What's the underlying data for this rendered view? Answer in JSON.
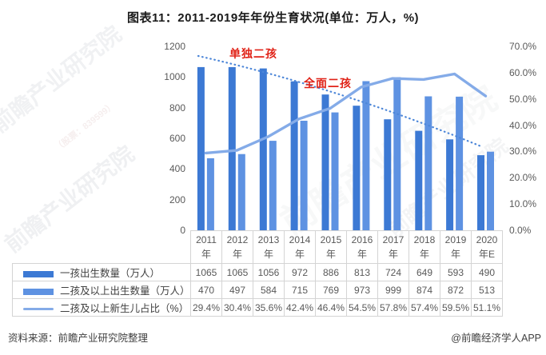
{
  "title": "图表11：2011-2019年年份生育状况(单位：万人，%)",
  "annotations": [
    {
      "text": "单独二孩"
    },
    {
      "text": "全面二孩"
    }
  ],
  "colors": {
    "bar1": "#3c79d4",
    "bar2": "#5e92e2",
    "line": "#84abe8",
    "trend_dotted": "#4c86d8",
    "annotation_red": "#e02318",
    "axis_text": "#595959",
    "table_border": "#d4d4d4"
  },
  "chart_data": {
    "type": "bar",
    "subtype": "grouped bars + line on secondary axis + dotted trend line",
    "categories": [
      "2011年",
      "2012年",
      "2013年",
      "2014年",
      "2015年",
      "2016年",
      "2017年",
      "2018年",
      "2019年",
      "2020年E"
    ],
    "series": [
      {
        "name": "一孩出生数量（万人）",
        "type": "bar",
        "axis": "left",
        "values": [
          1065,
          1065,
          1056,
          972,
          886,
          813,
          724,
          649,
          593,
          490
        ]
      },
      {
        "name": "二孩及以上出生数量（万人）",
        "type": "bar",
        "axis": "left",
        "values": [
          470,
          497,
          584,
          715,
          769,
          973,
          999,
          874,
          872,
          513
        ]
      },
      {
        "name": "二孩及以上新生儿占比（%）",
        "type": "line",
        "axis": "right",
        "values": [
          29.4,
          30.4,
          35.6,
          42.4,
          46.4,
          54.5,
          57.8,
          57.4,
          59.5,
          51.1
        ]
      }
    ],
    "left_axis": {
      "min": 0,
      "max": 1200,
      "step": 200,
      "ticks": [
        "0",
        "200",
        "400",
        "600",
        "800",
        "1000",
        "1200"
      ]
    },
    "right_axis": {
      "min": 0,
      "max": 70,
      "step": 10,
      "ticks": [
        "0.0%",
        "10.0%",
        "20.0%",
        "30.0%",
        "40.0%",
        "50.0%",
        "60.0%",
        "70.0%"
      ]
    },
    "grid": false,
    "legend_position": "bottom-table"
  },
  "table": {
    "x_labels": [
      [
        "2011",
        "年"
      ],
      [
        "2012",
        "年"
      ],
      [
        "2013",
        "年"
      ],
      [
        "2014",
        "年"
      ],
      [
        "2015",
        "年"
      ],
      [
        "2016",
        "年"
      ],
      [
        "2017",
        "年"
      ],
      [
        "2018",
        "年"
      ],
      [
        "2019",
        "年"
      ],
      [
        "2020",
        "年E"
      ]
    ],
    "rows": [
      {
        "label": "一孩出生数量（万人）",
        "swatch": "bar1",
        "values": [
          "1065",
          "1065",
          "1056",
          "972",
          "886",
          "813",
          "724",
          "649",
          "593",
          "490"
        ]
      },
      {
        "label": "二孩及以上出生数量（万人）",
        "swatch": "bar2",
        "values": [
          "470",
          "497",
          "584",
          "715",
          "769",
          "973",
          "999",
          "874",
          "872",
          "513"
        ]
      },
      {
        "label": "二孩及以上新生儿占比（%）",
        "swatch": "line",
        "values": [
          "29.4%",
          "30.4%",
          "35.6%",
          "42.4%",
          "46.4%",
          "54.5%",
          "57.8%",
          "57.4%",
          "59.5%",
          "51.1%"
        ]
      }
    ]
  },
  "footer": {
    "source": "资料来源：前瞻产业研究院整理",
    "credit": "@前瞻经济学人APP"
  },
  "watermarks": {
    "brand": "前瞻产业研究院",
    "ticker": "（股票：839599）"
  }
}
